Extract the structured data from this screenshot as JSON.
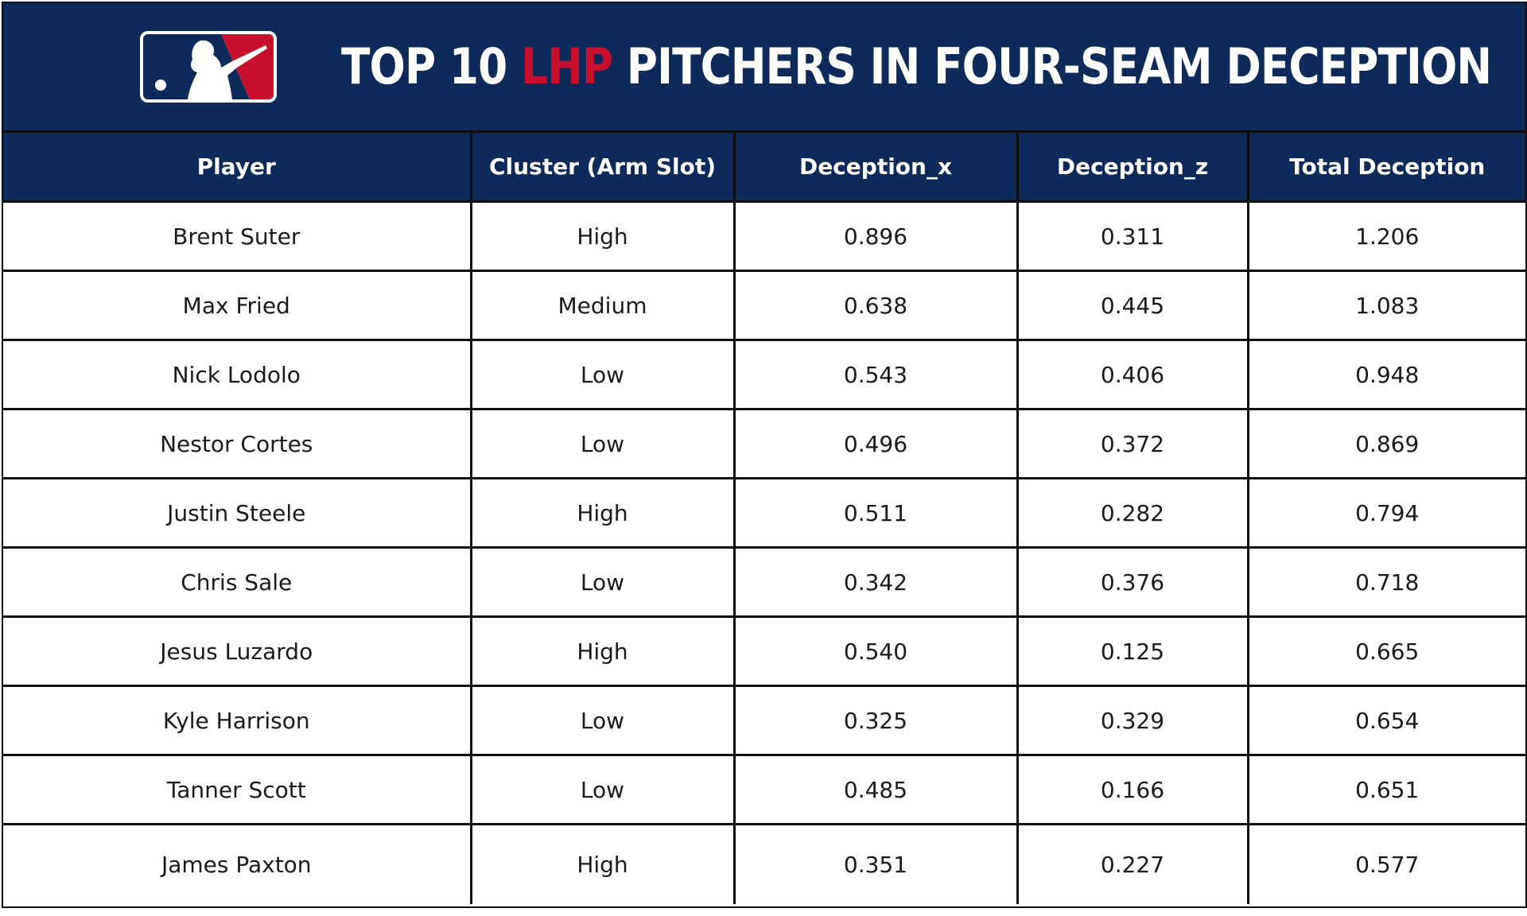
{
  "header": {
    "title_prefix": "TOP 10 ",
    "title_accent": "LHP",
    "title_suffix": " PITCHERS IN FOUR-SEAM DECEPTION",
    "logo": "mlb-logo",
    "colors": {
      "navy": "#0e2a5a",
      "red": "#c8102e",
      "white": "#ffffff"
    }
  },
  "table": {
    "columns": [
      "Player",
      "Cluster (Arm Slot)",
      "Deception_x",
      "Deception_z",
      "Total Deception"
    ],
    "rows": [
      [
        "Brent Suter",
        "High",
        "0.896",
        "0.311",
        "1.206"
      ],
      [
        "Max Fried",
        "Medium",
        "0.638",
        "0.445",
        "1.083"
      ],
      [
        "Nick Lodolo",
        "Low",
        "0.543",
        "0.406",
        "0.948"
      ],
      [
        "Nestor Cortes",
        "Low",
        "0.496",
        "0.372",
        "0.869"
      ],
      [
        "Justin Steele",
        "High",
        "0.511",
        "0.282",
        "0.794"
      ],
      [
        "Chris Sale",
        "Low",
        "0.342",
        "0.376",
        "0.718"
      ],
      [
        "Jesus Luzardo",
        "High",
        "0.540",
        "0.125",
        "0.665"
      ],
      [
        "Kyle Harrison",
        "Low",
        "0.325",
        "0.329",
        "0.654"
      ],
      [
        "Tanner Scott",
        "Low",
        "0.485",
        "0.166",
        "0.651"
      ],
      [
        "James Paxton",
        "High",
        "0.351",
        "0.227",
        "0.577"
      ]
    ]
  }
}
